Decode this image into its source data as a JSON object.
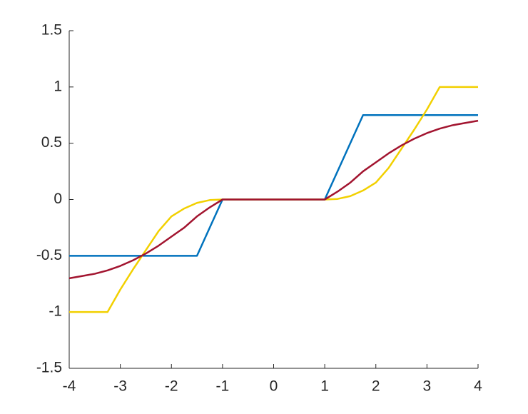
{
  "chart_data": {
    "type": "line",
    "x": [
      -4,
      -3.75,
      -3.5,
      -3.25,
      -3,
      -2.75,
      -2.5,
      -2.25,
      -2,
      -1.75,
      -1.5,
      -1.25,
      -1,
      -0.75,
      -0.5,
      -0.25,
      0,
      0.25,
      0.5,
      0.75,
      1,
      1.25,
      1.5,
      1.75,
      2,
      2.25,
      2.5,
      2.75,
      3,
      3.25,
      3.5,
      3.75,
      4
    ],
    "series": [
      {
        "color": "#0072bd",
        "values": [
          -0.5,
          -0.5,
          -0.5,
          -0.5,
          -0.5,
          -0.5,
          -0.5,
          -0.5,
          -0.5,
          -0.5,
          -0.5,
          -0.25,
          0,
          0,
          0,
          0,
          0,
          0,
          0,
          0,
          0,
          0.25,
          0.5,
          0.75,
          0.75,
          0.75,
          0.75,
          0.75,
          0.75,
          0.75,
          0.75,
          0.75,
          0.75
        ]
      },
      {
        "color": "#f2d000",
        "values": [
          -1,
          -1,
          -1,
          -1,
          -0.8,
          -0.62,
          -0.45,
          -0.28,
          -0.15,
          -0.08,
          -0.03,
          -0.005,
          0,
          0,
          0,
          0,
          0,
          0,
          0,
          0,
          0,
          0.005,
          0.03,
          0.08,
          0.15,
          0.28,
          0.45,
          0.62,
          0.8,
          1,
          1,
          1,
          1
        ]
      },
      {
        "color": "#a2142f",
        "values": [
          -0.7,
          -0.68,
          -0.66,
          -0.63,
          -0.59,
          -0.54,
          -0.48,
          -0.41,
          -0.33,
          -0.25,
          -0.15,
          -0.07,
          0,
          0,
          0,
          0,
          0,
          0,
          0,
          0,
          0,
          0.07,
          0.15,
          0.25,
          0.33,
          0.41,
          0.48,
          0.54,
          0.59,
          0.63,
          0.66,
          0.68,
          0.7
        ]
      }
    ],
    "xlim": [
      -4,
      4
    ],
    "xticks": [
      -4,
      -3,
      -2,
      -1,
      0,
      1,
      2,
      3,
      4
    ],
    "ylim": [
      -1.5,
      1.5
    ],
    "yticks": [
      -1.5,
      -1,
      -0.5,
      0,
      0.5,
      1,
      1.5
    ],
    "grid": false
  }
}
